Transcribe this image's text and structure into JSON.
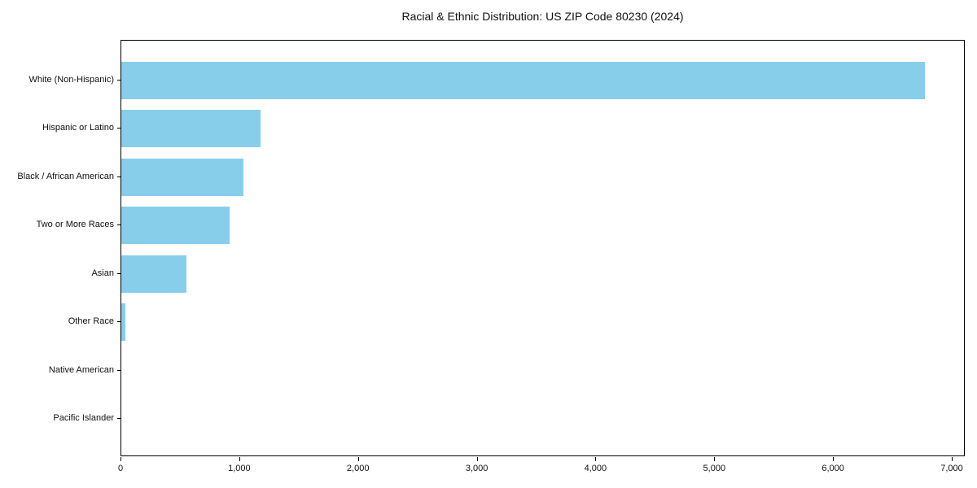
{
  "chart_data": {
    "type": "bar",
    "orientation": "horizontal",
    "title": "Racial & Ethnic Distribution: US ZIP Code 80230 (2024)",
    "categories": [
      "White (Non-Hispanic)",
      "Hispanic or Latino",
      "Black / African American",
      "Two or More Races",
      "Asian",
      "Other Race",
      "Native American",
      "Pacific Islander"
    ],
    "values": [
      6770,
      1170,
      1030,
      910,
      545,
      35,
      0,
      0
    ],
    "xlabel": "",
    "ylabel": "",
    "xlim": [
      0,
      7110
    ],
    "xticks": [
      0,
      1000,
      2000,
      3000,
      4000,
      5000,
      6000,
      7000
    ],
    "xtick_labels": [
      "0",
      "1,000",
      "2,000",
      "3,000",
      "4,000",
      "5,000",
      "6,000",
      "7,000"
    ],
    "bar_color": "#87CEEB",
    "frame_color": "#000000",
    "background_color": "#ffffff",
    "grid": false,
    "legend": null
  }
}
